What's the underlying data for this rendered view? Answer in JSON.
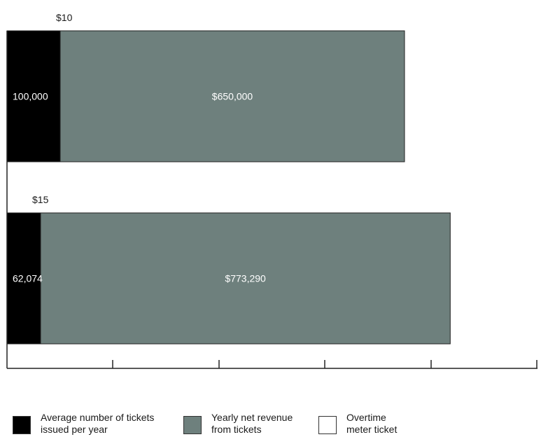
{
  "chart_data": {
    "type": "bar",
    "orientation": "horizontal",
    "stacked": true,
    "categories": [
      "$10",
      "$15"
    ],
    "series": [
      {
        "name": "Average number of tickets issued per year",
        "values": [
          100000,
          62074
        ],
        "labels": [
          "100,000",
          "62,074"
        ],
        "color": "#000000"
      },
      {
        "name": "Yearly net revenue from tickets",
        "values": [
          650000,
          773290
        ],
        "labels": [
          "$650,000",
          "$773,290"
        ],
        "color": "#6e807d"
      }
    ],
    "grid": false,
    "legend_position": "bottom"
  },
  "legend": [
    {
      "label_line1": "Average number of tickets",
      "label_line2": "issued per year",
      "color": "#000000"
    },
    {
      "label_line1": "Yearly net revenue",
      "label_line2": "from tickets",
      "color": "#6e807d"
    },
    {
      "label_line1": "Overtime",
      "label_line2": "meter ticket",
      "color": "#ffffff"
    }
  ]
}
